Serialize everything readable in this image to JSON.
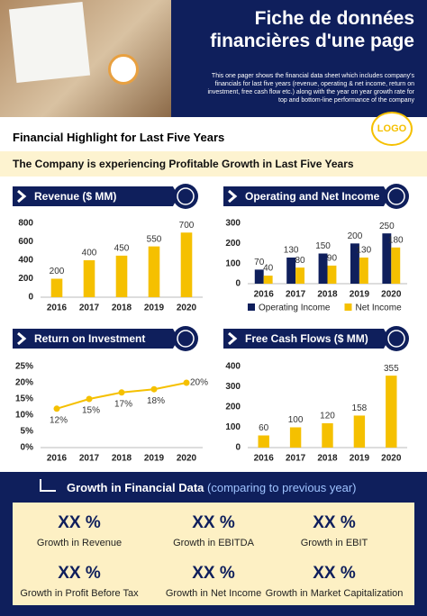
{
  "header": {
    "title": "Fiche de données financières d'une page",
    "description": "This one pager shows the financial data sheet which includes company's financials for last five years (revenue, operating & net income, return on investment, free cash flow etc.) along with the year on year growth rate for top and bottom-line performance of the company",
    "logo": "LOGO"
  },
  "section_title": "Financial Highlight for Last Five Years",
  "banner": "The Company is experiencing Profitable Growth in Last Five Years",
  "chart_data": [
    {
      "type": "bar",
      "title": "Revenue ($ MM)",
      "categories": [
        "2016",
        "2017",
        "2018",
        "2019",
        "2020"
      ],
      "values": [
        200,
        400,
        450,
        550,
        700
      ],
      "color": "#f5c000",
      "ylim": [
        0,
        800
      ],
      "yticks": [
        0,
        200,
        400,
        600,
        800
      ]
    },
    {
      "type": "bar",
      "title": "Operating and Net Income",
      "categories": [
        "2016",
        "2017",
        "2018",
        "2019",
        "2020"
      ],
      "series": [
        {
          "name": "Operating Income",
          "color": "#0f1f5c",
          "values": [
            70,
            130,
            150,
            200,
            250
          ]
        },
        {
          "name": "Net Income",
          "color": "#f5c000",
          "values": [
            40,
            80,
            90,
            130,
            180
          ]
        }
      ],
      "ylim": [
        0,
        300
      ],
      "yticks": [
        0,
        100,
        200,
        300
      ],
      "legend": "bottom"
    },
    {
      "type": "line",
      "title": "Return on Investment",
      "categories": [
        "2016",
        "2017",
        "2018",
        "2019",
        "2020"
      ],
      "values": [
        12,
        15,
        17,
        18,
        20
      ],
      "value_labels": [
        "12%",
        "15%",
        "17%",
        "18%",
        "20%"
      ],
      "color": "#f5c000",
      "ylim": [
        0,
        25
      ],
      "yticks": [
        {
          "value": 0,
          "label": "0%"
        },
        {
          "value": 5,
          "label": "5%"
        },
        {
          "value": 10,
          "label": "10%"
        },
        {
          "value": 15,
          "label": "15%"
        },
        {
          "value": 20,
          "label": "20%"
        },
        {
          "value": 25,
          "label": "25%"
        }
      ]
    },
    {
      "type": "bar",
      "title": "Free Cash Flows ($ MM)",
      "categories": [
        "2016",
        "2017",
        "2018",
        "2019",
        "2020"
      ],
      "values": [
        60,
        100,
        120,
        158,
        355
      ],
      "color": "#f5c000",
      "ylim": [
        0,
        400
      ],
      "yticks": [
        0,
        100,
        200,
        300,
        400
      ]
    }
  ],
  "growth": {
    "title": "Growth in Financial Data",
    "subtitle": "(comparing to previous year)",
    "items": [
      {
        "value": "XX %",
        "label": "Growth in Revenue"
      },
      {
        "value": "XX %",
        "label": "Growth in EBITDA"
      },
      {
        "value": "XX %",
        "label": "Growth in EBIT"
      },
      {
        "value": "XX %",
        "label": "Growth in Profit Before Tax"
      },
      {
        "value": "XX %",
        "label": "Growth in Net Income"
      },
      {
        "value": "XX %",
        "label": "Growth in Market Capitalization"
      }
    ]
  }
}
